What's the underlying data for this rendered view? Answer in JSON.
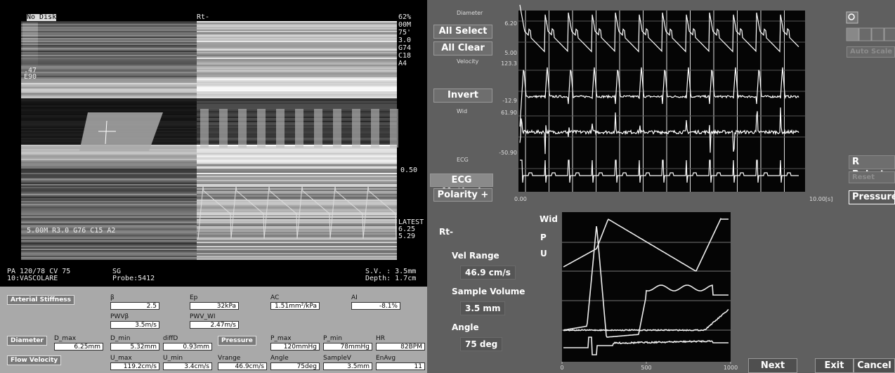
{
  "ultrasound": {
    "top_left": "No Disk",
    "top_center": "Rt-",
    "scale_top": [
      "62%",
      "00M",
      "75'",
      "3.0",
      "G74",
      "C18",
      "A4"
    ],
    "gray_labels": [
      ".47",
      "E90"
    ],
    "mmode_label": "0.50",
    "latest": [
      "LATEST",
      "6.25",
      "5.29"
    ],
    "bmode_params": "5.00M R3.0 G76 C15 A2",
    "info_left": [
      "PA 120/78  CV 75",
      "10:VASCOLARE"
    ],
    "info_mid": [
      "SG",
      "Probe:5412"
    ],
    "info_right": [
      "S.V. : 3.5mm",
      "Depth: 1.7cm"
    ]
  },
  "measurements": {
    "rows": [
      {
        "label": "Arterial Stiffness",
        "fields": [
          {
            "label": "β",
            "value": "2.5"
          },
          {
            "label": "Ep",
            "value": "32kPa"
          },
          {
            "label": "AC",
            "value": "1.51mm²/kPa"
          },
          {
            "label": "AI",
            "value": "-8.1%"
          },
          {
            "label": "PWVβ",
            "value": "3.5m/s"
          },
          {
            "label": "PWV_WI",
            "value": "2.47m/s"
          }
        ]
      },
      {
        "label": "Diameter",
        "fields": [
          {
            "label": "D_max",
            "value": "6.25mm"
          },
          {
            "label": "D_min",
            "value": "5.32mm"
          },
          {
            "label": "diffD",
            "value": "0.93mm"
          }
        ]
      },
      {
        "label": "Pressure",
        "fields": [
          {
            "label": "P_max",
            "value": "120mmHg"
          },
          {
            "label": "P_min",
            "value": "78mmHg"
          },
          {
            "label": "HR",
            "value": "82BPM"
          }
        ]
      },
      {
        "label": "Flow Velocity",
        "fields": [
          {
            "label": "U_max",
            "value": "119.2cm/s"
          },
          {
            "label": "U_min",
            "value": "3.4cm/s"
          },
          {
            "label": "Vrange",
            "value": "46.9cm/s"
          },
          {
            "label": "Angle",
            "value": "75deg"
          },
          {
            "label": "SampleV",
            "value": "3.5mm"
          },
          {
            "label": "EnAvg",
            "value": "11"
          }
        ]
      }
    ]
  },
  "controls": {
    "buttons": [
      "All Select",
      "All Clear",
      "Invert",
      "ECG Method",
      "Polarity +"
    ],
    "right_buttons": [
      "Auto Scale",
      "R Reject",
      "Reset",
      "Pressure"
    ],
    "bottom_buttons": [
      "Next",
      "Exit",
      "Cancel"
    ]
  },
  "strip_chart": {
    "channels": [
      {
        "name": "Diameter",
        "top": "6.20",
        "bottom": "5.00"
      },
      {
        "name": "Velocity",
        "top": "123.3",
        "bottom": "-12.9"
      },
      {
        "name": "Wid",
        "top": "61.90",
        "bottom": "-50.90"
      },
      {
        "name": "ECG"
      }
    ],
    "time_start": "0.00",
    "time_end": "10.00[s]"
  },
  "summary": {
    "side": "Rt-",
    "items": [
      {
        "label": "Vel Range",
        "value": "46.9 cm/s"
      },
      {
        "label": "Sample Volume",
        "value": "3.5 mm"
      },
      {
        "label": "Angle",
        "value": "75 deg"
      }
    ]
  },
  "beat_plot": {
    "legend": [
      "Wid",
      "P",
      "U"
    ],
    "xlim": [
      0,
      1000
    ],
    "xticks": [
      0,
      500,
      1000
    ]
  }
}
